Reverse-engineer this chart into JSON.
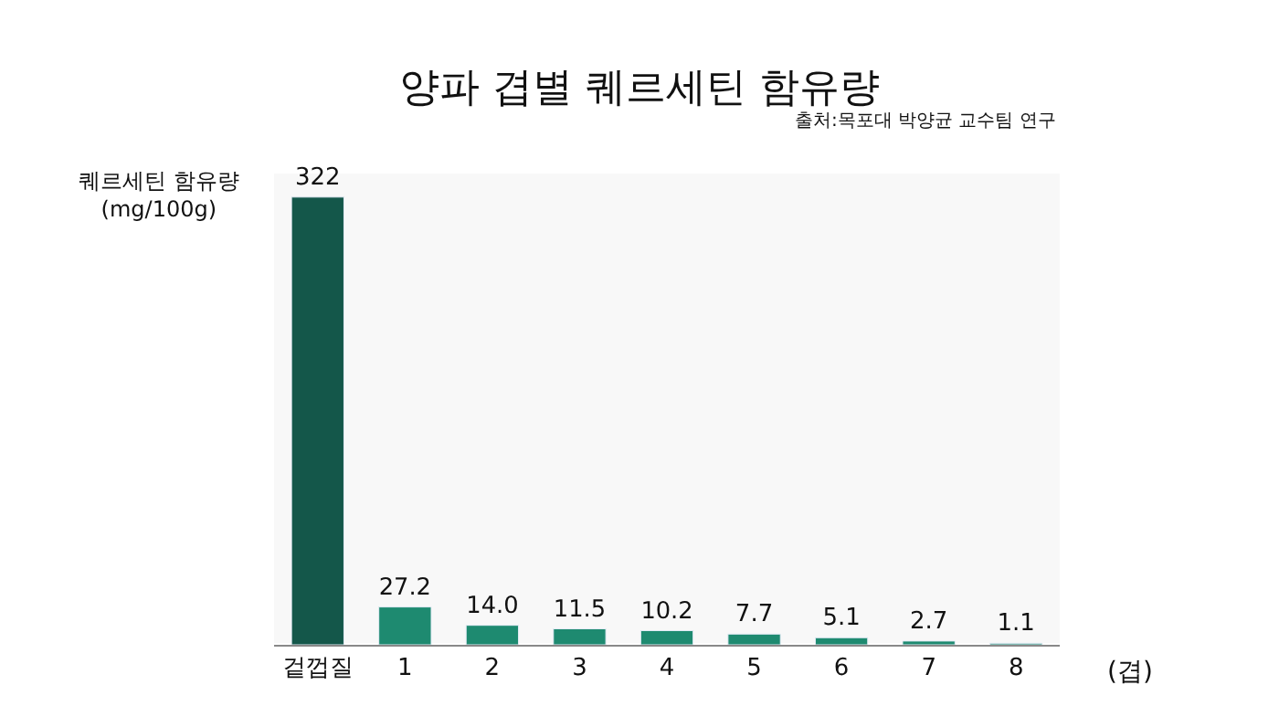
{
  "chart_data": {
    "type": "bar",
    "title": "양파 겹별 퀘르세틴 함유량",
    "ylabel": "퀘르세틴 함유량\n(mg/100g)",
    "xlabel": "(겹)",
    "annotations": [
      "출처:목포대 박양균 교수팀 연구"
    ],
    "categories": [
      "겉껍질",
      "1",
      "2",
      "3",
      "4",
      "5",
      "6",
      "7",
      "8"
    ],
    "values": [
      322,
      27.2,
      14.0,
      11.5,
      10.2,
      7.7,
      5.1,
      2.7,
      1.1
    ],
    "value_labels": [
      "322",
      "27.2",
      "14.0",
      "11.5",
      "10.2",
      "7.7",
      "5.1",
      "2.7",
      "1.1"
    ],
    "colors": [
      "#14574a",
      "#1e8a70",
      "#1e8a70",
      "#1e8a70",
      "#1e8a70",
      "#1e8a70",
      "#1e8a70",
      "#1e8a70",
      "#1e8a70"
    ]
  }
}
